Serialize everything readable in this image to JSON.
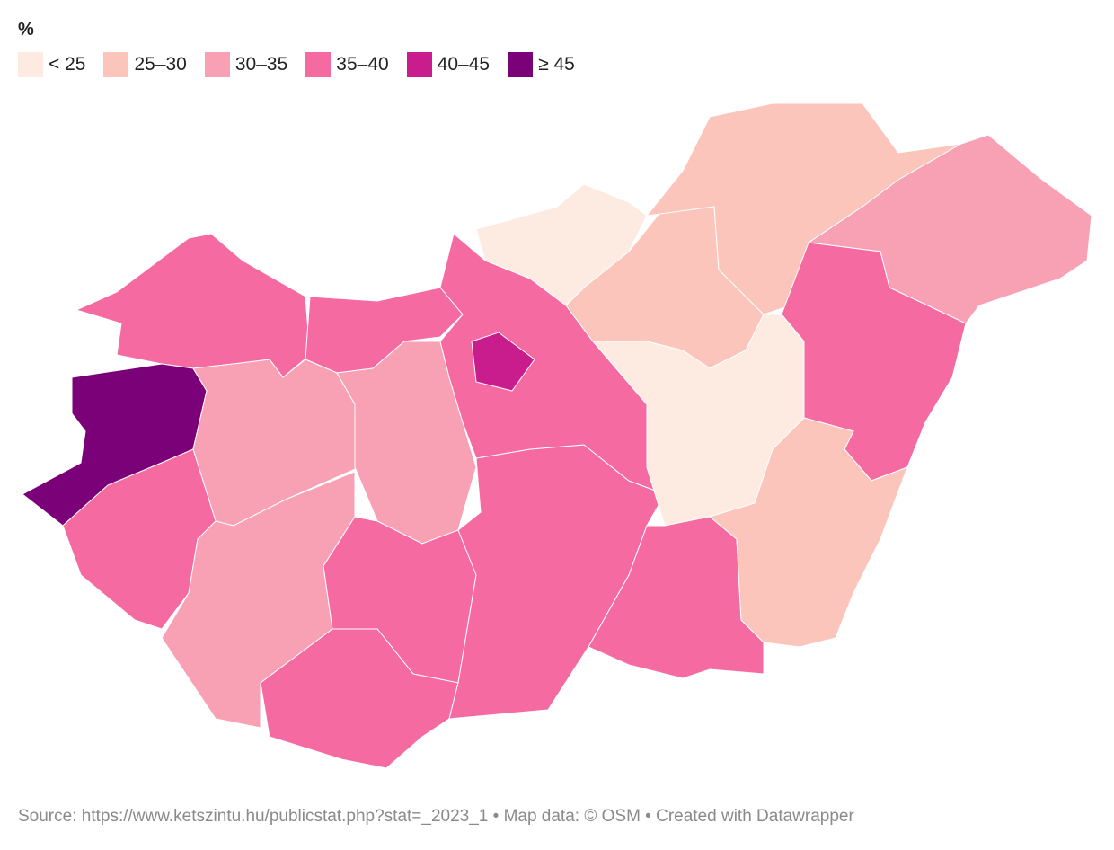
{
  "title": "%",
  "legend": [
    {
      "label": "< 25",
      "color": "#fdebe2"
    },
    {
      "label": "25–30",
      "color": "#fbc5bc"
    },
    {
      "label": "30–35",
      "color": "#f8a1b5"
    },
    {
      "label": "35–40",
      "color": "#f46aa1"
    },
    {
      "label": "40–45",
      "color": "#c91d8e"
    },
    {
      "label": "≥ 45",
      "color": "#7a0177"
    }
  ],
  "source": "Source: https://www.ketszintu.hu/publicstat.php?stat=_2023_1 • Map data: © OSM  • Created with Datawrapper"
}
